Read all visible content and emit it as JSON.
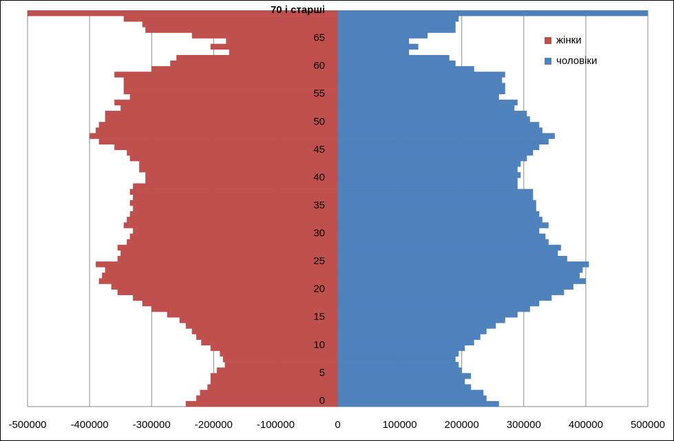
{
  "chart_data": {
    "type": "bar",
    "orientation": "horizontal",
    "stacked": true,
    "categories": [
      "0",
      null,
      null,
      null,
      null,
      "5",
      null,
      null,
      null,
      null,
      "10",
      null,
      null,
      null,
      null,
      "15",
      null,
      null,
      null,
      null,
      "20",
      null,
      null,
      null,
      null,
      "25",
      null,
      null,
      null,
      null,
      "30",
      null,
      null,
      null,
      null,
      "35",
      null,
      null,
      null,
      null,
      "40",
      null,
      null,
      null,
      null,
      "45",
      null,
      null,
      null,
      null,
      "50",
      null,
      null,
      null,
      null,
      "55",
      null,
      null,
      null,
      null,
      "60",
      null,
      null,
      null,
      null,
      "65",
      null,
      null,
      null,
      null,
      "70 і старші"
    ],
    "series": [
      {
        "name": "жінки",
        "color": "#c0504d",
        "values": [
          -245000,
          -228000,
          -222000,
          -210000,
          -205000,
          -205000,
          -195000,
          -182000,
          -185000,
          -190000,
          -205000,
          -220000,
          -228000,
          -235000,
          -245000,
          -255000,
          -275000,
          -300000,
          -315000,
          -330000,
          -355000,
          -365000,
          -385000,
          -380000,
          -375000,
          -390000,
          -355000,
          -350000,
          -355000,
          -340000,
          -335000,
          -330000,
          -345000,
          -340000,
          -335000,
          -330000,
          -335000,
          -330000,
          -335000,
          -330000,
          -310000,
          -310000,
          -320000,
          -320000,
          -335000,
          -340000,
          -360000,
          -385000,
          -400000,
          -390000,
          -385000,
          -375000,
          -375000,
          -350000,
          -360000,
          -335000,
          -345000,
          -345000,
          -345000,
          -360000,
          -300000,
          -270000,
          -260000,
          -175000,
          -205000,
          -180000,
          -235000,
          -310000,
          -315000,
          -345000,
          -500000
        ]
      },
      {
        "name": "чоловіки",
        "color": "#4f81bd",
        "values": [
          260000,
          240000,
          235000,
          215000,
          205000,
          215000,
          200000,
          195000,
          190000,
          195000,
          205000,
          220000,
          230000,
          240000,
          255000,
          270000,
          290000,
          310000,
          325000,
          345000,
          365000,
          380000,
          400000,
          390000,
          395000,
          405000,
          370000,
          355000,
          360000,
          340000,
          335000,
          325000,
          340000,
          330000,
          325000,
          320000,
          320000,
          315000,
          315000,
          290000,
          290000,
          295000,
          290000,
          295000,
          305000,
          315000,
          325000,
          340000,
          350000,
          330000,
          325000,
          310000,
          305000,
          285000,
          290000,
          260000,
          270000,
          270000,
          265000,
          270000,
          220000,
          190000,
          180000,
          115000,
          130000,
          115000,
          145000,
          190000,
          190000,
          195000,
          500000
        ]
      }
    ],
    "xlim": [
      -500000,
      500000
    ],
    "xticks": [
      -500000,
      -400000,
      -300000,
      -200000,
      -100000,
      0,
      100000,
      200000,
      300000,
      400000,
      500000
    ],
    "grid": true,
    "legend": "upper right"
  }
}
